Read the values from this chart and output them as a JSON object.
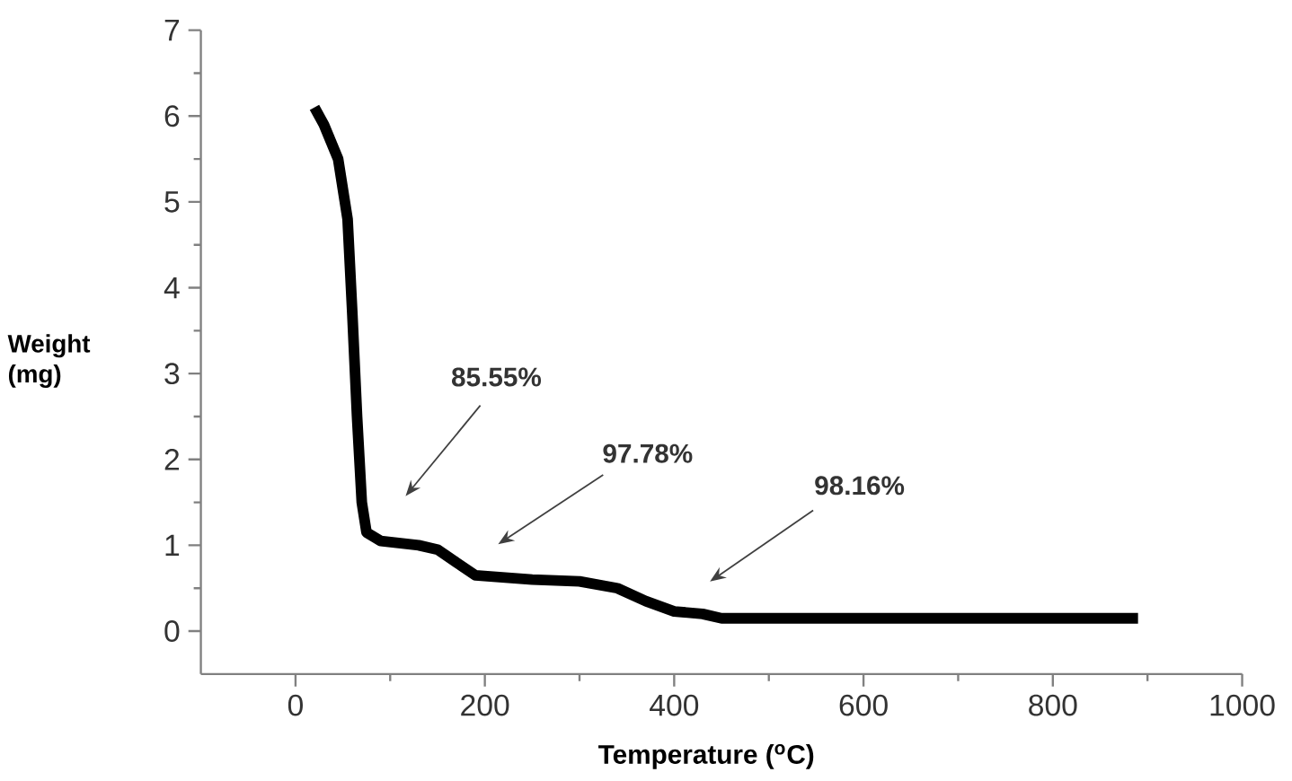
{
  "chart_data": {
    "type": "line",
    "xlabel": "Temperature ($^{o}$C)",
    "ylabel": "Weight (mg)",
    "x": [
      20,
      30,
      45,
      55,
      60,
      65,
      70,
      75,
      90,
      130,
      150,
      170,
      190,
      250,
      300,
      340,
      370,
      400,
      430,
      450,
      600,
      800,
      890
    ],
    "series": [
      {
        "color": "#000000",
        "values": [
          6.1,
          5.9,
          5.5,
          4.8,
          3.7,
          2.5,
          1.5,
          1.15,
          1.05,
          1.0,
          0.95,
          0.8,
          0.65,
          0.6,
          0.58,
          0.5,
          0.35,
          0.23,
          0.2,
          0.15,
          0.15,
          0.15,
          0.15
        ]
      }
    ],
    "xlim": [
      -100,
      1000
    ],
    "ylim": [
      -0.5,
      7
    ],
    "xticks": [
      0,
      200,
      400,
      600,
      800,
      1000
    ],
    "yticks": [
      0,
      1,
      2,
      3,
      4,
      5,
      6,
      7
    ],
    "grid": false,
    "marker": "none",
    "line_style": "solid",
    "annotations": [
      "85.55%",
      "97.78%",
      "98.16%"
    ]
  }
}
